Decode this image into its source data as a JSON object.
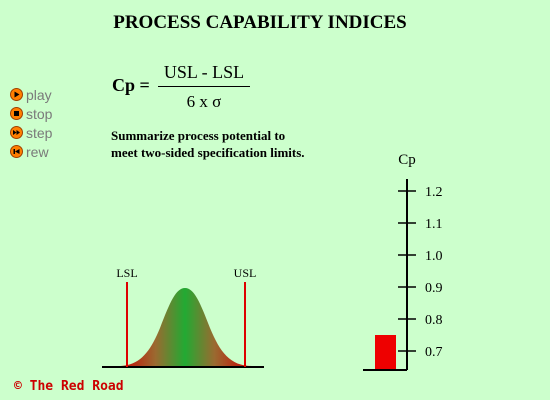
{
  "title": "PROCESS CAPABILITY INDICES",
  "controls": [
    {
      "label": "play",
      "icon": "play-icon"
    },
    {
      "label": "stop",
      "icon": "stop-icon"
    },
    {
      "label": "step",
      "icon": "step-icon"
    },
    {
      "label": "rew",
      "icon": "rewind-icon"
    }
  ],
  "formula": {
    "lhs": "Cp =",
    "numerator": "USL - LSL",
    "denominator": "6 x σ"
  },
  "description": "Summarize process potential to meet two-sided specification limits.",
  "distribution": {
    "lsl_label": "LSL",
    "usl_label": "USL"
  },
  "gauge": {
    "label": "Cp",
    "ticks": [
      "1.2",
      "1.1",
      "1.0",
      "0.9",
      "0.8",
      "0.7"
    ],
    "tick_values": [
      1.2,
      1.1,
      1.0,
      0.9,
      0.8,
      0.7
    ],
    "current_value": 0.75
  },
  "colors": {
    "background": "#ccffcc",
    "control_button": "#ff7f00",
    "control_text": "#7a7a7a",
    "curve_center": "#22aa33",
    "curve_edge": "#cc0000",
    "spec_line": "#dd0000",
    "bar": "#ee0000",
    "copyright": "#cc0000"
  },
  "copyright": "© The Red Road"
}
